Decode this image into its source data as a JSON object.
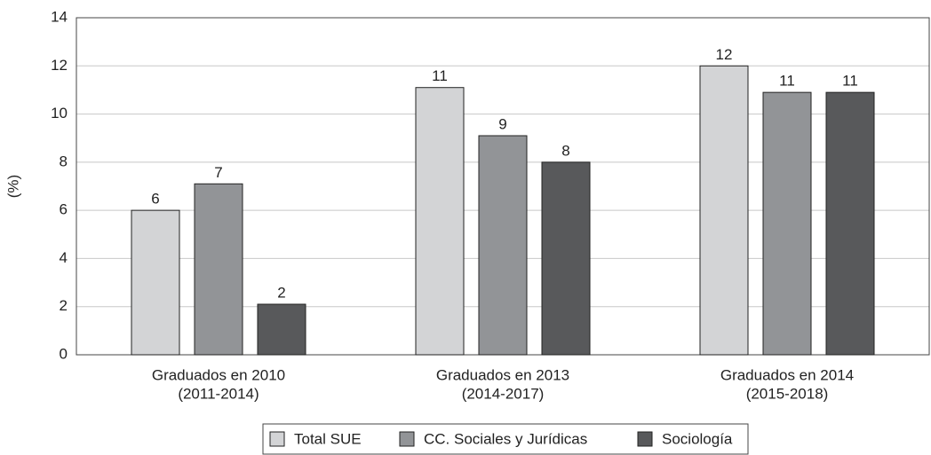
{
  "chart_data": {
    "type": "bar",
    "y_label": "(%)",
    "categories": [
      [
        "Graduados en 2010",
        "(2011-2014)"
      ],
      [
        "Graduados en 2013",
        "(2014-2017)"
      ],
      [
        "Graduados en 2014",
        "(2015-2018)"
      ]
    ],
    "series": [
      {
        "name": "Total SUE",
        "color": "#d3d4d6",
        "values": [
          6.0,
          11.1,
          12.0
        ],
        "value_labels": [
          "6",
          "11",
          "12"
        ]
      },
      {
        "name": "CC. Sociales y Jurídicas",
        "color": "#929497",
        "values": [
          7.1,
          9.1,
          10.9
        ],
        "value_labels": [
          "7",
          "9",
          "11"
        ]
      },
      {
        "name": "Sociología",
        "color": "#58595b",
        "values": [
          2.1,
          8.0,
          10.9
        ],
        "value_labels": [
          "2",
          "8",
          "11"
        ]
      }
    ],
    "ylim": [
      0,
      14
    ],
    "yticks": [
      0,
      2,
      4,
      6,
      8,
      10,
      12,
      14
    ],
    "grid": true,
    "legend": "bottom"
  }
}
